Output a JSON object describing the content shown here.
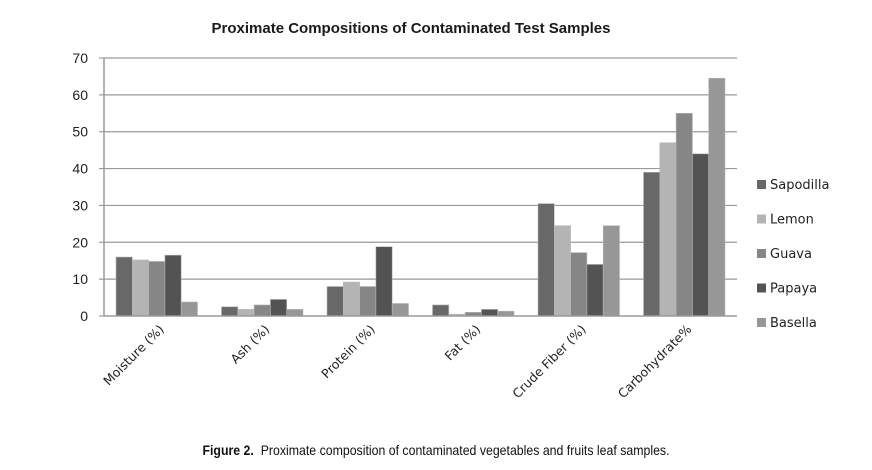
{
  "chart_data": {
    "type": "bar",
    "title": "Proximate Compositions of Contaminated Test Samples",
    "xlabel": "",
    "ylabel": "",
    "ylim": [
      0,
      70
    ],
    "yticks": [
      0,
      10,
      20,
      30,
      40,
      50,
      60,
      70
    ],
    "grid": true,
    "legend_position": "right",
    "categories": [
      "Moisture (%)",
      "Ash (%)",
      "Protein (%)",
      "Fat (%)",
      "Crude Fiber (%)",
      "Carbohydrate%"
    ],
    "series": [
      {
        "name": "Sapodilla",
        "color": "#686868",
        "values": [
          16.0,
          2.5,
          8.0,
          3.0,
          30.5,
          39.0
        ]
      },
      {
        "name": "Lemon",
        "color": "#b4b4b4",
        "values": [
          15.2,
          1.8,
          9.2,
          0.5,
          24.5,
          47.0
        ]
      },
      {
        "name": "Guava",
        "color": "#868686",
        "values": [
          14.8,
          3.0,
          8.0,
          1.0,
          17.2,
          55.0
        ]
      },
      {
        "name": "Papaya",
        "color": "#535353",
        "values": [
          16.5,
          4.5,
          18.8,
          1.8,
          14.0,
          44.0
        ]
      },
      {
        "name": "Basella",
        "color": "#979797",
        "values": [
          3.8,
          1.8,
          3.4,
          1.3,
          24.5,
          64.5
        ]
      }
    ]
  },
  "caption": {
    "label": "Figure 2.",
    "text": "Proximate composition of contaminated vegetables and fruits leaf samples."
  }
}
